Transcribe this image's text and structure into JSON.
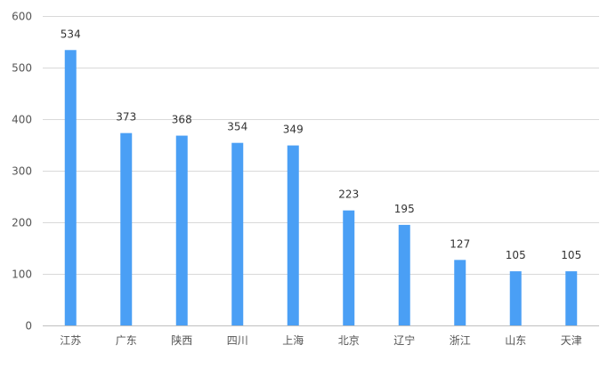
{
  "chart_data": {
    "type": "bar",
    "categories": [
      "江苏",
      "广东",
      "陕西",
      "四川",
      "上海",
      "北京",
      "辽宁",
      "浙江",
      "山东",
      "天津"
    ],
    "values": [
      534,
      373,
      368,
      354,
      349,
      223,
      195,
      127,
      105,
      105
    ],
    "data_labels": [
      "534",
      "373",
      "368",
      "354",
      "349",
      "223",
      "195",
      "127",
      "105",
      "105"
    ],
    "y_ticks": [
      "0",
      "100",
      "200",
      "300",
      "400",
      "500",
      "600"
    ],
    "ylim": [
      0,
      600
    ],
    "bar_color": "#4a9ff5",
    "grid": true,
    "legend": "none"
  }
}
